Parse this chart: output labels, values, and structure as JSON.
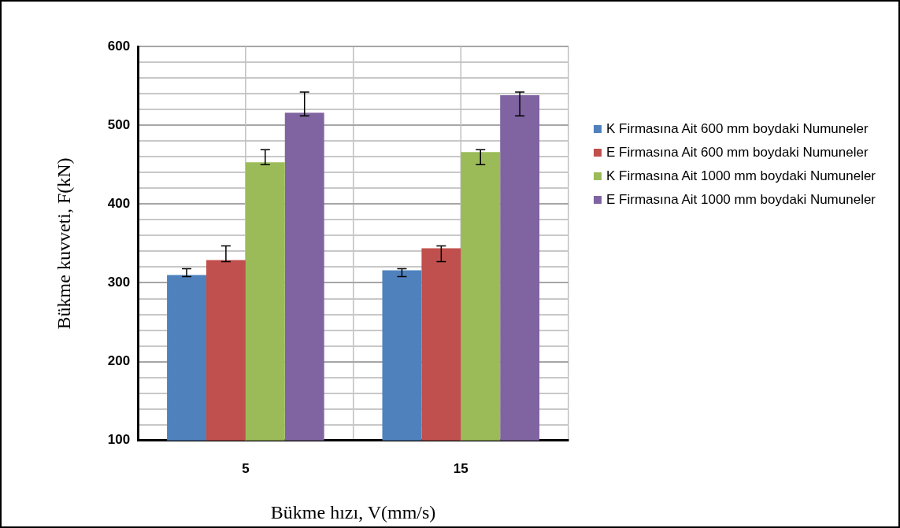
{
  "chart_data": {
    "type": "bar",
    "xlabel": "Bükme hızı, V(mm/s)",
    "ylabel": "Bükme kuvveti, F(kN)",
    "categories": [
      "5",
      "15"
    ],
    "series": [
      {
        "name": "K Firmasına Ait 600 mm boydaki Numuneler",
        "color": "#4f81bd",
        "values": [
          310,
          316
        ],
        "errors": [
          [
            308,
            318
          ],
          [
            308,
            318
          ]
        ]
      },
      {
        "name": "E Firmasına Ait 600 mm boydaki Numuneler",
        "color": "#c0504d",
        "values": [
          329,
          344
        ],
        "errors": [
          [
            327,
            347
          ],
          [
            327,
            347
          ]
        ]
      },
      {
        "name": "K Firmasına Ait 1000 mm boydaki Numuneler",
        "color": "#9bbb59",
        "values": [
          453,
          466
        ],
        "errors": [
          [
            450,
            469
          ],
          [
            450,
            469
          ]
        ]
      },
      {
        "name": "E Firmasına Ait 1000 mm boydaki Numuneler",
        "color": "#8064a2",
        "values": [
          516,
          538
        ],
        "errors": [
          [
            512,
            542
          ],
          [
            512,
            542
          ]
        ]
      }
    ],
    "ylim": [
      100,
      600
    ],
    "yticks": [
      100,
      {
        "value": 120,
        "label": null
      },
      {
        "value": 140,
        "label": null
      },
      {
        "value": 160,
        "label": null
      },
      {
        "value": 180,
        "label": null
      },
      200,
      {
        "value": 220,
        "label": null
      },
      {
        "value": 240,
        "label": null
      },
      {
        "value": 260,
        "label": null
      },
      {
        "value": 280,
        "label": null
      },
      300,
      {
        "value": 320,
        "label": null
      },
      {
        "value": 340,
        "label": null
      },
      {
        "value": 360,
        "label": null
      },
      {
        "value": 380,
        "label": null
      },
      400,
      {
        "value": 420,
        "label": null
      },
      {
        "value": 440,
        "label": null
      },
      {
        "value": 460,
        "label": null
      },
      {
        "value": 480,
        "label": null
      },
      500,
      {
        "value": 520,
        "label": null
      },
      {
        "value": 540,
        "label": null
      },
      {
        "value": 560,
        "label": null
      },
      {
        "value": 580,
        "label": null
      },
      600
    ],
    "grid": true,
    "legend": "right"
  }
}
